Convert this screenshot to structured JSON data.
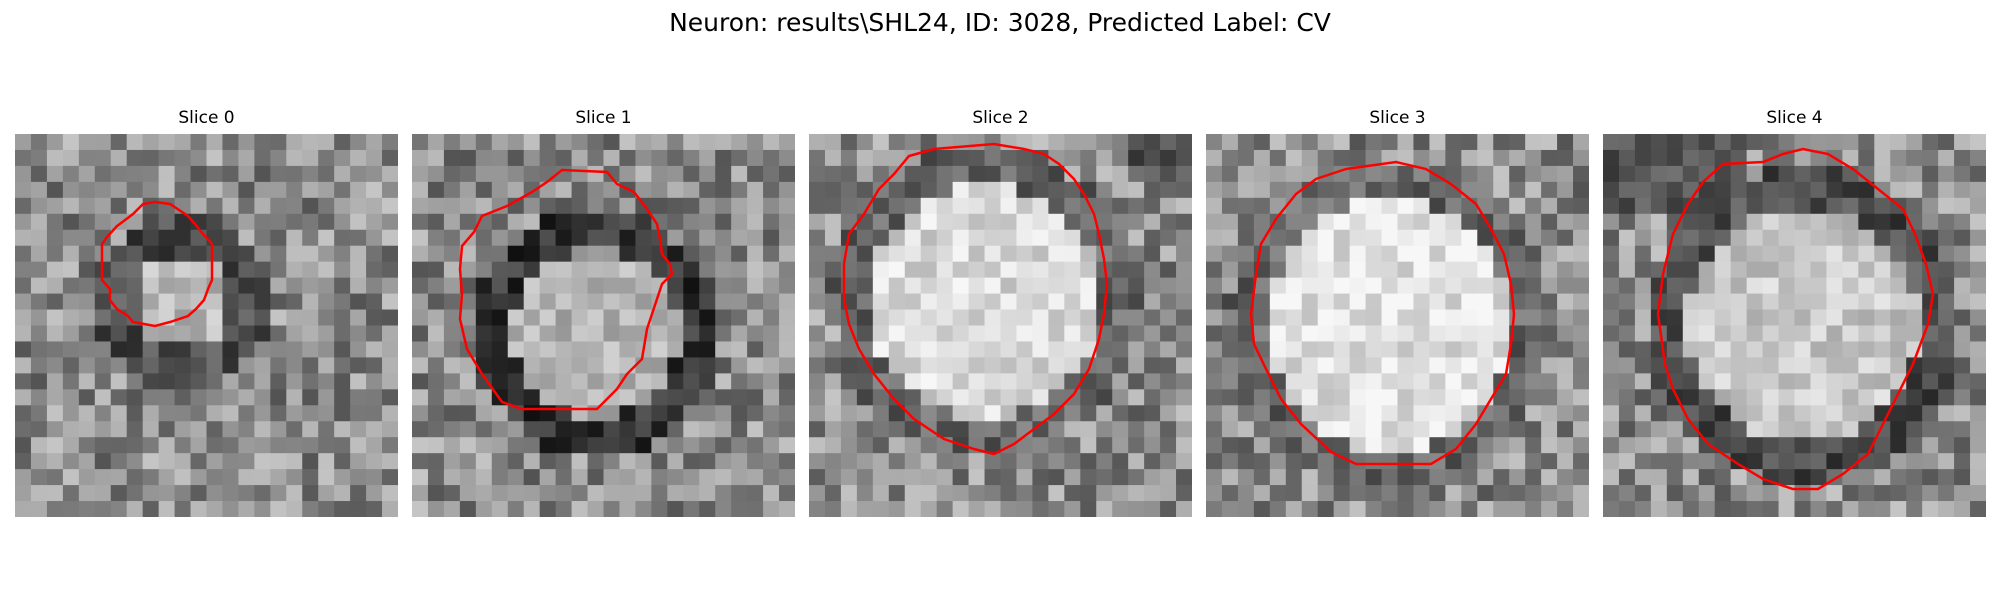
{
  "figure": {
    "suptitle": "Neuron: results\\SHL24, ID: 3028, Predicted Label: CV"
  },
  "panels": [
    {
      "title": "Slice 0",
      "contour_color": "#ff0000"
    },
    {
      "title": "Slice 1",
      "contour_color": "#ff0000"
    },
    {
      "title": "Slice 2",
      "contour_color": "#ff0000"
    },
    {
      "title": "Slice 3",
      "contour_color": "#ff0000"
    },
    {
      "title": "Slice 4",
      "contour_color": "#ff0000"
    }
  ]
}
